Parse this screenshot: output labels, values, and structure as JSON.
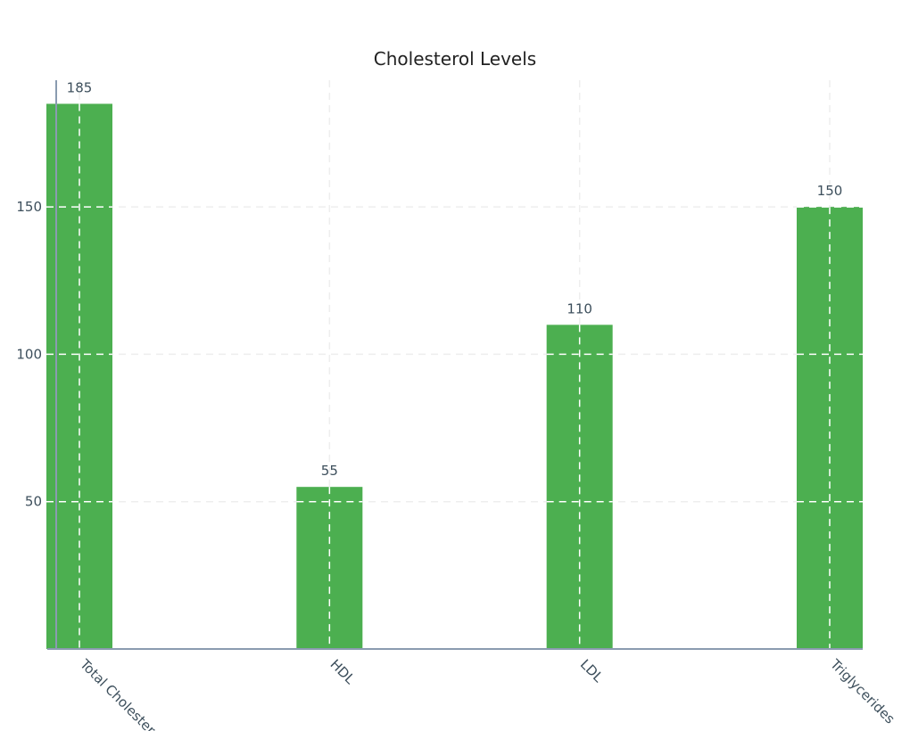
{
  "chart_data": {
    "type": "bar",
    "title": "Cholesterol Levels",
    "xlabel": "",
    "ylabel": "",
    "categories": [
      "Total Cholesterol",
      "HDL",
      "LDL",
      "Triglycerides"
    ],
    "values": [
      185,
      55,
      110,
      150
    ],
    "value_labels": [
      "185",
      "55",
      "110",
      "150"
    ],
    "y_ticks": [
      50,
      100,
      150
    ],
    "ylim": [
      0,
      193
    ],
    "grid": true,
    "legend": "none",
    "colors": {
      "bar": "#4caf50",
      "axis": "#8a9bb0",
      "grid_outside": "#eeeeee",
      "grid_inside": "#ffffff",
      "text": "#3d4f5c",
      "title": "#222222"
    }
  }
}
